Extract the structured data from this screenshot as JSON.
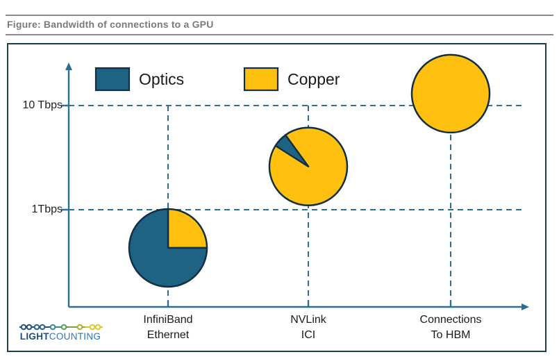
{
  "title": "Figure: Bandwidth of connections to a GPU",
  "colors": {
    "optics": "#1f6384",
    "copper": "#ffc010",
    "outline": "#132f42",
    "axis": "#2b7094",
    "frame": "#1c3c50",
    "title_gray": "#7a7a7a",
    "logo_dark": "#1f4e79",
    "logo_light": "#2e75b6"
  },
  "legend": [
    {
      "label": "Optics",
      "color": "#1f6384"
    },
    {
      "label": "Copper",
      "color": "#ffc010"
    }
  ],
  "logo": {
    "bold": "LIGHT",
    "regular": "COUNTING"
  },
  "chart_data": {
    "type": "scatter",
    "subtype": "pie-marker-bubbles",
    "title": "Figure: Bandwidth of connections to a GPU",
    "y_scale": "log",
    "y_ticks": [
      {
        "label": "10 Tbps",
        "value": 10
      },
      {
        "label": "1Tbps",
        "value": 1
      }
    ],
    "grid": "dashed",
    "legend_position": "top-left",
    "legend": [
      "Optics",
      "Copper"
    ],
    "points": [
      {
        "name": "InfiniBand Ethernet",
        "label_lines": [
          "InfiniBand",
          "Ethernet"
        ],
        "bandwidth_tbps": 0.43,
        "copper_share": 0.25,
        "optics_share": 0.75,
        "pie_rotation_deg": 0
      },
      {
        "name": "NVLink ICI",
        "label_lines": [
          "NVLink",
          "ICI"
        ],
        "bandwidth_tbps": 2.6,
        "copper_share": 0.94,
        "optics_share": 0.06,
        "pie_rotation_deg": -36
      },
      {
        "name": "Connections To HBM",
        "label_lines": [
          "Connections",
          "To HBM"
        ],
        "bandwidth_tbps": 13,
        "copper_share": 1.0,
        "optics_share": 0.0,
        "pie_rotation_deg": 0
      }
    ]
  }
}
